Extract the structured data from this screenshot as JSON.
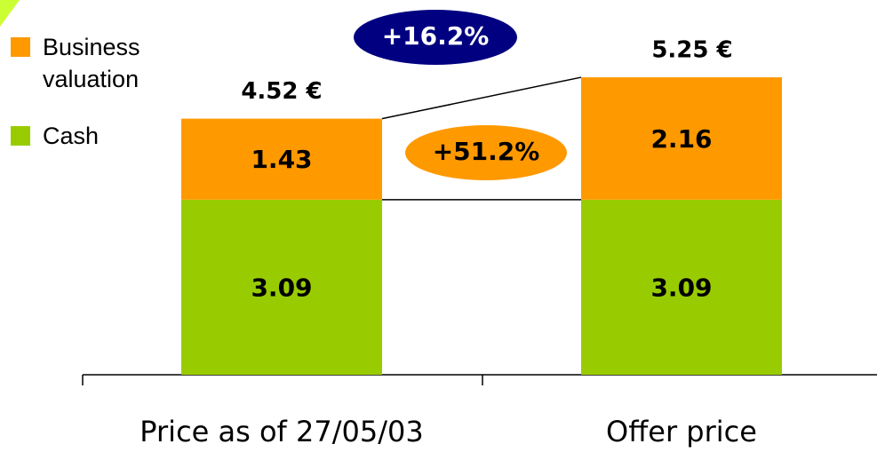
{
  "chart_data": {
    "type": "stacked_bar",
    "categories": [
      "Price as of 27/05/03",
      "Offer price"
    ],
    "series": [
      {
        "name": "Cash",
        "color": "#99cc00",
        "values": [
          3.09,
          3.09
        ]
      },
      {
        "name": "Business valuation",
        "color": "#ff9900",
        "values": [
          1.43,
          2.16
        ]
      }
    ],
    "total_labels": [
      "4.52 €",
      "5.25 €"
    ],
    "annotations": [
      "+16.2%",
      "+51.2%"
    ]
  }
}
